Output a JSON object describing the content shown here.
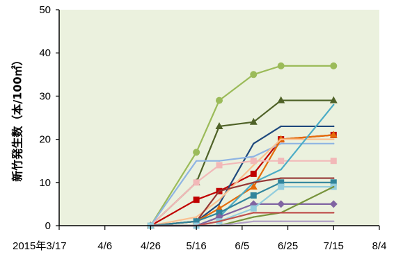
{
  "chart_data": {
    "type": "line",
    "title": "",
    "ylabel": "新竹発生数（本/100㎡）",
    "xlabel": "",
    "x_ticks": [
      "2015年3/17",
      "4/6",
      "4/26",
      "5/16",
      "6/5",
      "6/25",
      "7/15",
      "8/4"
    ],
    "y_ticks": [
      "0",
      "10",
      "20",
      "30",
      "40",
      "50"
    ],
    "ylim": [
      0,
      50
    ],
    "xlim": [
      "2015-03-17",
      "2015-08-04"
    ],
    "grid": false,
    "legend": "none",
    "plot_background": "#ebf1de",
    "x": [
      "2015-04-26",
      "2015-05-16",
      "2015-05-26",
      "2015-06-10",
      "2015-06-22",
      "2015-07-15"
    ],
    "series": [
      {
        "color": "#9bbb59",
        "marker": "circle",
        "values": [
          0,
          17,
          29,
          35,
          37,
          37
        ]
      },
      {
        "color": "#4f6228",
        "marker": "triangle",
        "values": [
          0,
          10,
          23,
          24,
          29,
          29
        ]
      },
      {
        "color": "#c00000",
        "marker": "square",
        "values": [
          0,
          6,
          8,
          12,
          20,
          21
        ]
      },
      {
        "color": "#1f497d",
        "marker": "none",
        "values": [
          0,
          1,
          5,
          19,
          23,
          23
        ]
      },
      {
        "color": "#8eb4e3",
        "marker": "none",
        "values": [
          0,
          15,
          15,
          16,
          19,
          19
        ]
      },
      {
        "color": "#e46c0a",
        "marker": "triangle",
        "values": [
          0,
          1,
          4,
          9,
          20,
          21
        ]
      },
      {
        "color": "#fac090",
        "marker": "none",
        "values": [
          0,
          2,
          6,
          14,
          20,
          20
        ]
      },
      {
        "color": "#f2b8b8",
        "marker": "square",
        "values": [
          0,
          10,
          14,
          15,
          15,
          15
        ]
      },
      {
        "color": "#4bacc6",
        "marker": "none",
        "values": [
          0,
          0,
          2,
          10,
          13,
          28
        ]
      },
      {
        "color": "#953735",
        "marker": "none",
        "values": [
          0,
          1,
          8,
          10,
          11,
          11
        ]
      },
      {
        "color": "#31859c",
        "marker": "square",
        "values": [
          0,
          1,
          3,
          7,
          10,
          10
        ]
      },
      {
        "color": "#8064a2",
        "marker": "diamond",
        "values": [
          0,
          0,
          2,
          5,
          5,
          5
        ]
      },
      {
        "color": "#93cddd",
        "marker": "square",
        "values": [
          0,
          0,
          1,
          4,
          9,
          9
        ]
      },
      {
        "color": "#77933c",
        "marker": "none",
        "values": [
          0,
          0,
          0,
          2,
          3,
          9
        ]
      },
      {
        "color": "#c0504d",
        "marker": "none",
        "values": [
          0,
          0,
          1,
          3,
          3,
          3
        ]
      },
      {
        "color": "#b3a2c7",
        "marker": "none",
        "values": [
          0,
          0,
          0,
          1,
          1,
          1
        ]
      }
    ]
  }
}
